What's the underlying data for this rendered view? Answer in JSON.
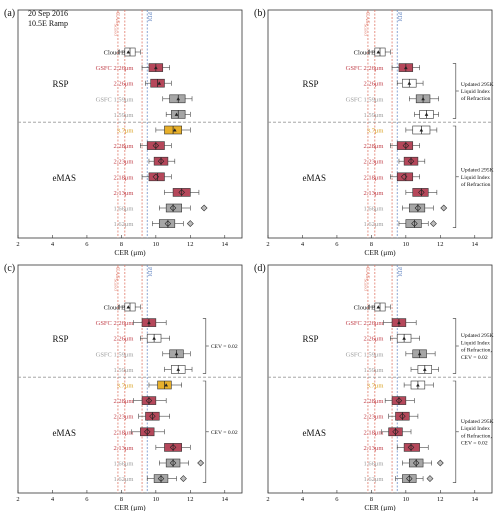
{
  "colors": {
    "red": "#b5475a",
    "gray_dark": "#a6a6a6",
    "gray_light": "#d3d3d3",
    "white": "#ffffff",
    "gold": "#e8b02a",
    "cas_line": "#e07a6a",
    "pdi_line": "#6f8fc7",
    "label_red": "#c0404a",
    "label_gray": "#9a9a9a",
    "label_gold": "#d9a020",
    "label_black": "#222222",
    "divider": "#999999"
  },
  "figure": {
    "x_label": "CER (μm)",
    "x_ticks": [
      "2",
      "4",
      "6",
      "8",
      "10",
      "12",
      "14"
    ],
    "date_line1": "20 Sep 2016",
    "date_line2": "10.5E Ramp",
    "cas_label": "CAS",
    "cas_sub": "Scaled",
    "pdi_label": "PDI",
    "rsp_group": "RSP",
    "emas_group": "eMAS"
  },
  "chart_data": [
    {
      "panel": "(a)",
      "type": "box",
      "x_range": [
        2,
        15
      ],
      "reference_lines": {
        "CAS_scaled": [
          7.8,
          8.2
        ],
        "PDI": [
          9.2,
          9.5
        ]
      },
      "rows": [
        {
          "label": "Cloud Bow",
          "label_color": "black",
          "fill": "white",
          "q1": 8.2,
          "median": 8.5,
          "q3": 8.8,
          "whisker_low": 7.9,
          "whisker_high": 9.1,
          "mean": 8.4,
          "marker": "triangle"
        },
        {
          "label": "GSFC 2.26μm",
          "label_color": "red",
          "fill": "red",
          "q1": 9.6,
          "median": 10.0,
          "q3": 10.4,
          "whisker_low": 9.2,
          "whisker_high": 10.8,
          "mean": 10.0,
          "marker": "triangle"
        },
        {
          "label": "2.26μm",
          "label_color": "red",
          "fill": "red",
          "q1": 9.7,
          "median": 10.1,
          "q3": 10.5,
          "whisker_low": 9.4,
          "whisker_high": 10.9,
          "mean": 10.2,
          "marker": "triangle"
        },
        {
          "label": "GSFC 1.59μm",
          "label_color": "gray",
          "fill": "gray_dark",
          "q1": 10.8,
          "median": 11.3,
          "q3": 11.7,
          "whisker_low": 10.4,
          "whisker_high": 12.1,
          "mean": 11.3,
          "marker": "triangle"
        },
        {
          "label": "1.59μm",
          "label_color": "gray",
          "fill": "gray_dark",
          "q1": 10.9,
          "median": 11.3,
          "q3": 11.7,
          "whisker_low": 10.6,
          "whisker_high": 12.0,
          "mean": 11.2,
          "marker": "triangle"
        },
        {
          "label": "3.7μm",
          "label_color": "gold",
          "fill": "gold",
          "q1": 10.5,
          "median": 11.0,
          "q3": 11.5,
          "whisker_low": 10.0,
          "whisker_high": 12.0,
          "mean": 11.1,
          "marker": "triangle"
        },
        {
          "label": "2.28μm",
          "label_color": "red",
          "fill": "red",
          "q1": 9.5,
          "median": 10.0,
          "q3": 10.5,
          "whisker_low": 9.1,
          "whisker_high": 10.9,
          "mean": 10.0,
          "marker": "diamond"
        },
        {
          "label": "2.23μm",
          "label_color": "red",
          "fill": "red",
          "q1": 9.9,
          "median": 10.3,
          "q3": 10.7,
          "whisker_low": 9.6,
          "whisker_high": 11.1,
          "mean": 10.3,
          "marker": "diamond"
        },
        {
          "label": "2.18μm",
          "label_color": "red",
          "fill": "red",
          "q1": 9.6,
          "median": 10.1,
          "q3": 10.5,
          "whisker_low": 9.2,
          "whisker_high": 10.9,
          "mean": 10.0,
          "marker": "diamond"
        },
        {
          "label": "2.13μm",
          "label_color": "red",
          "fill": "red",
          "q1": 11.0,
          "median": 11.5,
          "q3": 12.0,
          "whisker_low": 10.5,
          "whisker_high": 12.5,
          "mean": 11.5,
          "marker": "diamond"
        },
        {
          "label": "1.66μm",
          "label_color": "gray",
          "fill": "gray_dark",
          "q1": 10.6,
          "median": 11.0,
          "q3": 11.5,
          "whisker_low": 10.2,
          "whisker_high": 12.0,
          "mean": 11.0,
          "marker": "diamond",
          "outlier": 12.8
        },
        {
          "label": "1.62μm",
          "label_color": "gray",
          "fill": "gray_dark",
          "q1": 10.2,
          "median": 10.7,
          "q3": 11.1,
          "whisker_low": 9.8,
          "whisker_high": 11.6,
          "mean": 10.7,
          "marker": "diamond",
          "outlier": 12.0
        }
      ],
      "annotations": []
    },
    {
      "panel": "(b)",
      "type": "box",
      "x_range": [
        2,
        15
      ],
      "reference_lines": {
        "CAS_scaled": [
          7.8,
          8.2
        ],
        "PDI": [
          9.2,
          9.5
        ]
      },
      "rows": [
        {
          "label": "Cloud Bow",
          "label_color": "black",
          "fill": "white",
          "q1": 8.2,
          "median": 8.5,
          "q3": 8.8,
          "whisker_low": 7.9,
          "whisker_high": 9.1,
          "mean": 8.4,
          "marker": "triangle"
        },
        {
          "label": "GSFC 2.26μm",
          "label_color": "red",
          "fill": "red",
          "q1": 9.6,
          "median": 10.0,
          "q3": 10.4,
          "whisker_low": 9.2,
          "whisker_high": 10.8,
          "mean": 10.0,
          "marker": "triangle"
        },
        {
          "label": "2.26μm",
          "label_color": "red",
          "fill": "white",
          "q1": 9.8,
          "median": 10.2,
          "q3": 10.6,
          "whisker_low": 9.5,
          "whisker_high": 11.0,
          "mean": 10.2,
          "marker": "triangle"
        },
        {
          "label": "GSFC 1.59μm",
          "label_color": "gray",
          "fill": "gray_dark",
          "q1": 10.6,
          "median": 11.0,
          "q3": 11.4,
          "whisker_low": 10.2,
          "whisker_high": 11.9,
          "mean": 11.0,
          "marker": "triangle"
        },
        {
          "label": "1.59μm",
          "label_color": "gray",
          "fill": "white",
          "q1": 10.8,
          "median": 11.2,
          "q3": 11.6,
          "whisker_low": 10.5,
          "whisker_high": 11.9,
          "mean": 11.2,
          "marker": "triangle"
        },
        {
          "label": "3.7μm",
          "label_color": "gold",
          "fill": "white",
          "q1": 10.4,
          "median": 10.9,
          "q3": 11.4,
          "whisker_low": 10.0,
          "whisker_high": 11.8,
          "mean": 10.9,
          "marker": "triangle"
        },
        {
          "label": "2.28μm",
          "label_color": "red",
          "fill": "red",
          "q1": 9.5,
          "median": 10.0,
          "q3": 10.4,
          "whisker_low": 9.1,
          "whisker_high": 10.8,
          "mean": 10.0,
          "marker": "diamond"
        },
        {
          "label": "2.23μm",
          "label_color": "red",
          "fill": "red",
          "q1": 9.9,
          "median": 10.3,
          "q3": 10.7,
          "whisker_low": 9.6,
          "whisker_high": 11.1,
          "mean": 10.3,
          "marker": "diamond"
        },
        {
          "label": "2.18μm",
          "label_color": "red",
          "fill": "red",
          "q1": 9.5,
          "median": 10.0,
          "q3": 10.4,
          "whisker_low": 9.1,
          "whisker_high": 10.8,
          "mean": 9.9,
          "marker": "diamond"
        },
        {
          "label": "2.13μm",
          "label_color": "red",
          "fill": "red",
          "q1": 10.4,
          "median": 10.9,
          "q3": 11.3,
          "whisker_low": 10.0,
          "whisker_high": 11.8,
          "mean": 10.9,
          "marker": "diamond"
        },
        {
          "label": "1.66μm",
          "label_color": "gray",
          "fill": "gray_dark",
          "q1": 10.2,
          "median": 10.7,
          "q3": 11.1,
          "whisker_low": 9.8,
          "whisker_high": 11.6,
          "mean": 10.7,
          "marker": "diamond",
          "outlier": 12.2
        },
        {
          "label": "1.62μm",
          "label_color": "gray",
          "fill": "gray_dark",
          "q1": 10.0,
          "median": 10.5,
          "q3": 10.9,
          "whisker_low": 9.6,
          "whisker_high": 11.3,
          "mean": 10.5,
          "marker": "diamond",
          "outlier": 11.6
        }
      ],
      "annotations": [
        {
          "from_row": 1,
          "to_row": 4,
          "lines": [
            "Updated 295K",
            "Liquid Index",
            "of Refraction"
          ]
        },
        {
          "from_row": 5,
          "to_row": 11,
          "lines": [
            "Updated 295K",
            "Liquid Index",
            "of Refraction"
          ]
        }
      ]
    },
    {
      "panel": "(c)",
      "type": "box",
      "x_range": [
        2,
        15
      ],
      "reference_lines": {
        "CAS_scaled": [
          7.8,
          8.2
        ],
        "PDI": [
          9.2,
          9.5
        ]
      },
      "rows": [
        {
          "label": "Cloud Bow",
          "label_color": "black",
          "fill": "white",
          "q1": 8.2,
          "median": 8.5,
          "q3": 8.8,
          "whisker_low": 7.9,
          "whisker_high": 9.1,
          "mean": 8.4,
          "marker": "triangle"
        },
        {
          "label": "GSFC 2.26μm",
          "label_color": "red",
          "fill": "red",
          "q1": 9.2,
          "median": 9.6,
          "q3": 10.0,
          "whisker_low": 8.7,
          "whisker_high": 10.6,
          "mean": 9.6,
          "marker": "triangle"
        },
        {
          "label": "2.26μm",
          "label_color": "red",
          "fill": "white",
          "q1": 9.5,
          "median": 9.9,
          "q3": 10.3,
          "whisker_low": 9.1,
          "whisker_high": 10.8,
          "mean": 9.9,
          "marker": "triangle"
        },
        {
          "label": "GSFC 1.59μm",
          "label_color": "gray",
          "fill": "gray_dark",
          "q1": 10.8,
          "median": 11.2,
          "q3": 11.6,
          "whisker_low": 10.4,
          "whisker_high": 12.0,
          "mean": 11.2,
          "marker": "triangle"
        },
        {
          "label": "1.59μm",
          "label_color": "gray",
          "fill": "white",
          "q1": 10.9,
          "median": 11.3,
          "q3": 11.7,
          "whisker_low": 10.5,
          "whisker_high": 12.1,
          "mean": 11.3,
          "marker": "triangle"
        },
        {
          "label": "3.7μm",
          "label_color": "gold",
          "fill": "gold",
          "q1": 10.1,
          "median": 10.5,
          "q3": 10.9,
          "whisker_low": 9.6,
          "whisker_high": 11.5,
          "mean": 10.6,
          "marker": "triangle"
        },
        {
          "label": "2.28μm",
          "label_color": "red",
          "fill": "red",
          "q1": 9.2,
          "median": 9.6,
          "q3": 10.0,
          "whisker_low": 8.7,
          "whisker_high": 10.6,
          "mean": 9.6,
          "marker": "diamond"
        },
        {
          "label": "2.23μm",
          "label_color": "red",
          "fill": "red",
          "q1": 9.4,
          "median": 9.8,
          "q3": 10.2,
          "whisker_low": 9.0,
          "whisker_high": 10.8,
          "mean": 9.8,
          "marker": "diamond"
        },
        {
          "label": "2.18μm",
          "label_color": "red",
          "fill": "red",
          "q1": 9.1,
          "median": 9.5,
          "q3": 9.9,
          "whisker_low": 8.6,
          "whisker_high": 10.5,
          "mean": 9.5,
          "marker": "diamond"
        },
        {
          "label": "2.13μm",
          "label_color": "red",
          "fill": "red",
          "q1": 10.5,
          "median": 11.0,
          "q3": 11.5,
          "whisker_low": 10.0,
          "whisker_high": 12.0,
          "mean": 11.0,
          "marker": "diamond"
        },
        {
          "label": "1.66μm",
          "label_color": "gray",
          "fill": "gray_dark",
          "q1": 10.6,
          "median": 11.0,
          "q3": 11.4,
          "whisker_low": 10.2,
          "whisker_high": 11.9,
          "mean": 11.0,
          "marker": "diamond",
          "outlier": 12.6
        },
        {
          "label": "1.62μm",
          "label_color": "gray",
          "fill": "gray_dark",
          "q1": 9.9,
          "median": 10.3,
          "q3": 10.7,
          "whisker_low": 9.5,
          "whisker_high": 11.2,
          "mean": 10.3,
          "marker": "diamond",
          "outlier": 11.6
        }
      ],
      "annotations": [
        {
          "from_row": 1,
          "to_row": 4,
          "lines": [
            "CEV = 0.02"
          ]
        },
        {
          "from_row": 5,
          "to_row": 11,
          "lines": [
            "CEV = 0.02"
          ]
        }
      ]
    },
    {
      "panel": "(d)",
      "type": "box",
      "x_range": [
        2,
        15
      ],
      "reference_lines": {
        "CAS_scaled": [
          7.8,
          8.2
        ],
        "PDI": [
          9.2,
          9.5
        ]
      },
      "rows": [
        {
          "label": "Cloud Bow",
          "label_color": "black",
          "fill": "white",
          "q1": 8.2,
          "median": 8.5,
          "q3": 8.8,
          "whisker_low": 7.9,
          "whisker_high": 9.1,
          "mean": 8.4,
          "marker": "triangle"
        },
        {
          "label": "GSFC 2.26μm",
          "label_color": "red",
          "fill": "red",
          "q1": 9.2,
          "median": 9.6,
          "q3": 10.0,
          "whisker_low": 8.7,
          "whisker_high": 10.6,
          "mean": 9.6,
          "marker": "triangle"
        },
        {
          "label": "2.26μm",
          "label_color": "red",
          "fill": "white",
          "q1": 9.5,
          "median": 9.9,
          "q3": 10.3,
          "whisker_low": 9.1,
          "whisker_high": 10.8,
          "mean": 9.9,
          "marker": "triangle"
        },
        {
          "label": "GSFC 1.59μm",
          "label_color": "gray",
          "fill": "gray_dark",
          "q1": 10.4,
          "median": 10.8,
          "q3": 11.2,
          "whisker_low": 10.0,
          "whisker_high": 11.7,
          "mean": 10.8,
          "marker": "triangle"
        },
        {
          "label": "1.59μm",
          "label_color": "gray",
          "fill": "white",
          "q1": 10.7,
          "median": 11.1,
          "q3": 11.5,
          "whisker_low": 10.3,
          "whisker_high": 11.9,
          "mean": 11.1,
          "marker": "triangle"
        },
        {
          "label": "3.7μm",
          "label_color": "gold",
          "fill": "white",
          "q1": 10.3,
          "median": 10.7,
          "q3": 11.1,
          "whisker_low": 9.9,
          "whisker_high": 11.6,
          "mean": 10.7,
          "marker": "triangle"
        },
        {
          "label": "2.28μm",
          "label_color": "red",
          "fill": "red",
          "q1": 9.2,
          "median": 9.6,
          "q3": 10.0,
          "whisker_low": 8.8,
          "whisker_high": 10.5,
          "mean": 9.6,
          "marker": "diamond"
        },
        {
          "label": "2.23μm",
          "label_color": "red",
          "fill": "red",
          "q1": 9.4,
          "median": 9.8,
          "q3": 10.2,
          "whisker_low": 9.0,
          "whisker_high": 10.7,
          "mean": 9.8,
          "marker": "diamond"
        },
        {
          "label": "2.18μm",
          "label_color": "red",
          "fill": "red",
          "q1": 9.0,
          "median": 9.4,
          "q3": 9.8,
          "whisker_low": 8.6,
          "whisker_high": 10.3,
          "mean": 9.4,
          "marker": "diamond"
        },
        {
          "label": "2.13μm",
          "label_color": "red",
          "fill": "red",
          "q1": 9.9,
          "median": 10.3,
          "q3": 10.8,
          "whisker_low": 9.5,
          "whisker_high": 11.3,
          "mean": 10.3,
          "marker": "diamond"
        },
        {
          "label": "1.66μm",
          "label_color": "gray",
          "fill": "gray_dark",
          "q1": 10.2,
          "median": 10.6,
          "q3": 11.0,
          "whisker_low": 9.8,
          "whisker_high": 11.5,
          "mean": 10.6,
          "marker": "diamond",
          "outlier": 12.0
        },
        {
          "label": "1.62μm",
          "label_color": "gray",
          "fill": "gray_dark",
          "q1": 9.8,
          "median": 10.2,
          "q3": 10.6,
          "whisker_low": 9.4,
          "whisker_high": 11.0,
          "mean": 10.2,
          "marker": "diamond",
          "outlier": 11.4
        }
      ],
      "annotations": [
        {
          "from_row": 1,
          "to_row": 4,
          "lines": [
            "Updated 295K",
            "Liquid Index",
            "of Refraction,",
            "CEV = 0.02"
          ]
        },
        {
          "from_row": 5,
          "to_row": 11,
          "lines": [
            "Updated 295K",
            "Liquid Index",
            "of Refraction,",
            "CEV = 0.02"
          ]
        }
      ]
    }
  ]
}
